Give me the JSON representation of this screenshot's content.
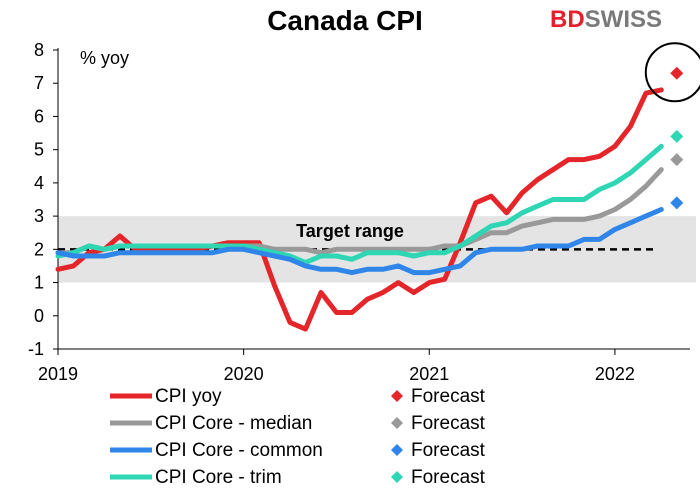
{
  "brand": {
    "part1": "BD",
    "part2": "SWISS",
    "color1": "#e4202c",
    "color2": "#7a7a7a"
  },
  "chart_data": {
    "type": "line",
    "title": "Canada CPI",
    "ylabel": "% yoy",
    "xlabel": "",
    "ylim": [
      -1,
      8
    ],
    "yticks": [
      -1,
      0,
      1,
      2,
      3,
      4,
      5,
      6,
      7,
      8
    ],
    "xticks": [
      {
        "label": "2019",
        "x": 0
      },
      {
        "label": "2020",
        "x": 12
      },
      {
        "label": "2021",
        "x": 24
      },
      {
        "label": "2022",
        "x": 36
      }
    ],
    "xlim": [
      0,
      41.5
    ],
    "target_range": {
      "low": 1,
      "high": 3,
      "midpoint": 2,
      "label": "Target range"
    },
    "series": [
      {
        "name": "CPI yoy",
        "color": "#e4262b",
        "x": [
          0,
          1,
          2,
          3,
          4,
          5,
          6,
          7,
          8,
          9,
          10,
          11,
          12,
          13,
          14,
          15,
          16,
          17,
          18,
          19,
          20,
          21,
          22,
          23,
          24,
          25,
          26,
          27,
          28,
          29,
          30,
          31,
          32,
          33,
          34,
          35,
          36,
          37,
          38,
          39
        ],
        "values": [
          1.4,
          1.5,
          1.9,
          2.0,
          2.4,
          2.0,
          2.0,
          2.0,
          2.0,
          2.0,
          2.1,
          2.2,
          2.2,
          2.2,
          0.9,
          -0.2,
          -0.4,
          0.7,
          0.1,
          0.1,
          0.5,
          0.7,
          1.0,
          0.7,
          1.0,
          1.1,
          2.2,
          3.4,
          3.6,
          3.1,
          3.7,
          4.1,
          4.4,
          4.7,
          4.7,
          4.8,
          5.1,
          5.7,
          6.7,
          6.8
        ],
        "forecast": {
          "name": "Forecast",
          "x": 40,
          "value": 7.3
        }
      },
      {
        "name": "CPI Core - median",
        "color": "#999999",
        "x": [
          0,
          1,
          2,
          3,
          4,
          5,
          6,
          7,
          8,
          9,
          10,
          11,
          12,
          13,
          14,
          15,
          16,
          17,
          18,
          19,
          20,
          21,
          22,
          23,
          24,
          25,
          26,
          27,
          28,
          29,
          30,
          31,
          32,
          33,
          34,
          35,
          36,
          37,
          38,
          39
        ],
        "values": [
          1.9,
          1.9,
          2.1,
          2.0,
          2.1,
          2.1,
          2.1,
          2.1,
          2.1,
          2.1,
          2.1,
          2.1,
          2.1,
          2.1,
          2.0,
          2.0,
          2.0,
          1.9,
          2.0,
          2.0,
          2.0,
          2.0,
          2.0,
          2.0,
          2.0,
          2.1,
          2.1,
          2.3,
          2.5,
          2.5,
          2.7,
          2.8,
          2.9,
          2.9,
          2.9,
          3.0,
          3.2,
          3.5,
          3.9,
          4.4
        ],
        "forecast": {
          "name": "Forecast",
          "x": 40,
          "value": 4.7
        }
      },
      {
        "name": "CPI Core - common",
        "color": "#2f86e8",
        "x": [
          0,
          1,
          2,
          3,
          4,
          5,
          6,
          7,
          8,
          9,
          10,
          11,
          12,
          13,
          14,
          15,
          16,
          17,
          18,
          19,
          20,
          21,
          22,
          23,
          24,
          25,
          26,
          27,
          28,
          29,
          30,
          31,
          32,
          33,
          34,
          35,
          36,
          37,
          38,
          39
        ],
        "values": [
          1.9,
          1.8,
          1.8,
          1.8,
          1.9,
          1.9,
          1.9,
          1.9,
          1.9,
          1.9,
          1.9,
          2.0,
          2.0,
          1.9,
          1.8,
          1.7,
          1.5,
          1.4,
          1.4,
          1.3,
          1.4,
          1.4,
          1.5,
          1.3,
          1.3,
          1.4,
          1.5,
          1.9,
          2.0,
          2.0,
          2.0,
          2.1,
          2.1,
          2.1,
          2.3,
          2.3,
          2.6,
          2.8,
          3.0,
          3.2
        ],
        "forecast": {
          "name": "Forecast",
          "x": 40,
          "value": 3.4
        }
      },
      {
        "name": "CPI Core - trim",
        "color": "#2ed6b4",
        "x": [
          0,
          1,
          2,
          3,
          4,
          5,
          6,
          7,
          8,
          9,
          10,
          11,
          12,
          13,
          14,
          15,
          16,
          17,
          18,
          19,
          20,
          21,
          22,
          23,
          24,
          25,
          26,
          27,
          28,
          29,
          30,
          31,
          32,
          33,
          34,
          35,
          36,
          37,
          38,
          39
        ],
        "values": [
          1.8,
          1.9,
          2.1,
          2.0,
          2.1,
          2.1,
          2.1,
          2.1,
          2.1,
          2.1,
          2.1,
          2.1,
          2.1,
          2.0,
          1.9,
          1.8,
          1.6,
          1.8,
          1.8,
          1.7,
          1.9,
          1.9,
          1.9,
          1.8,
          1.9,
          1.9,
          2.1,
          2.4,
          2.7,
          2.8,
          3.1,
          3.3,
          3.5,
          3.5,
          3.5,
          3.8,
          4.0,
          4.3,
          4.7,
          5.1
        ],
        "forecast": {
          "name": "Forecast",
          "x": 40,
          "value": 5.4
        }
      }
    ],
    "annotations": [
      {
        "type": "circle",
        "around": "CPI yoy forecast"
      }
    ]
  }
}
